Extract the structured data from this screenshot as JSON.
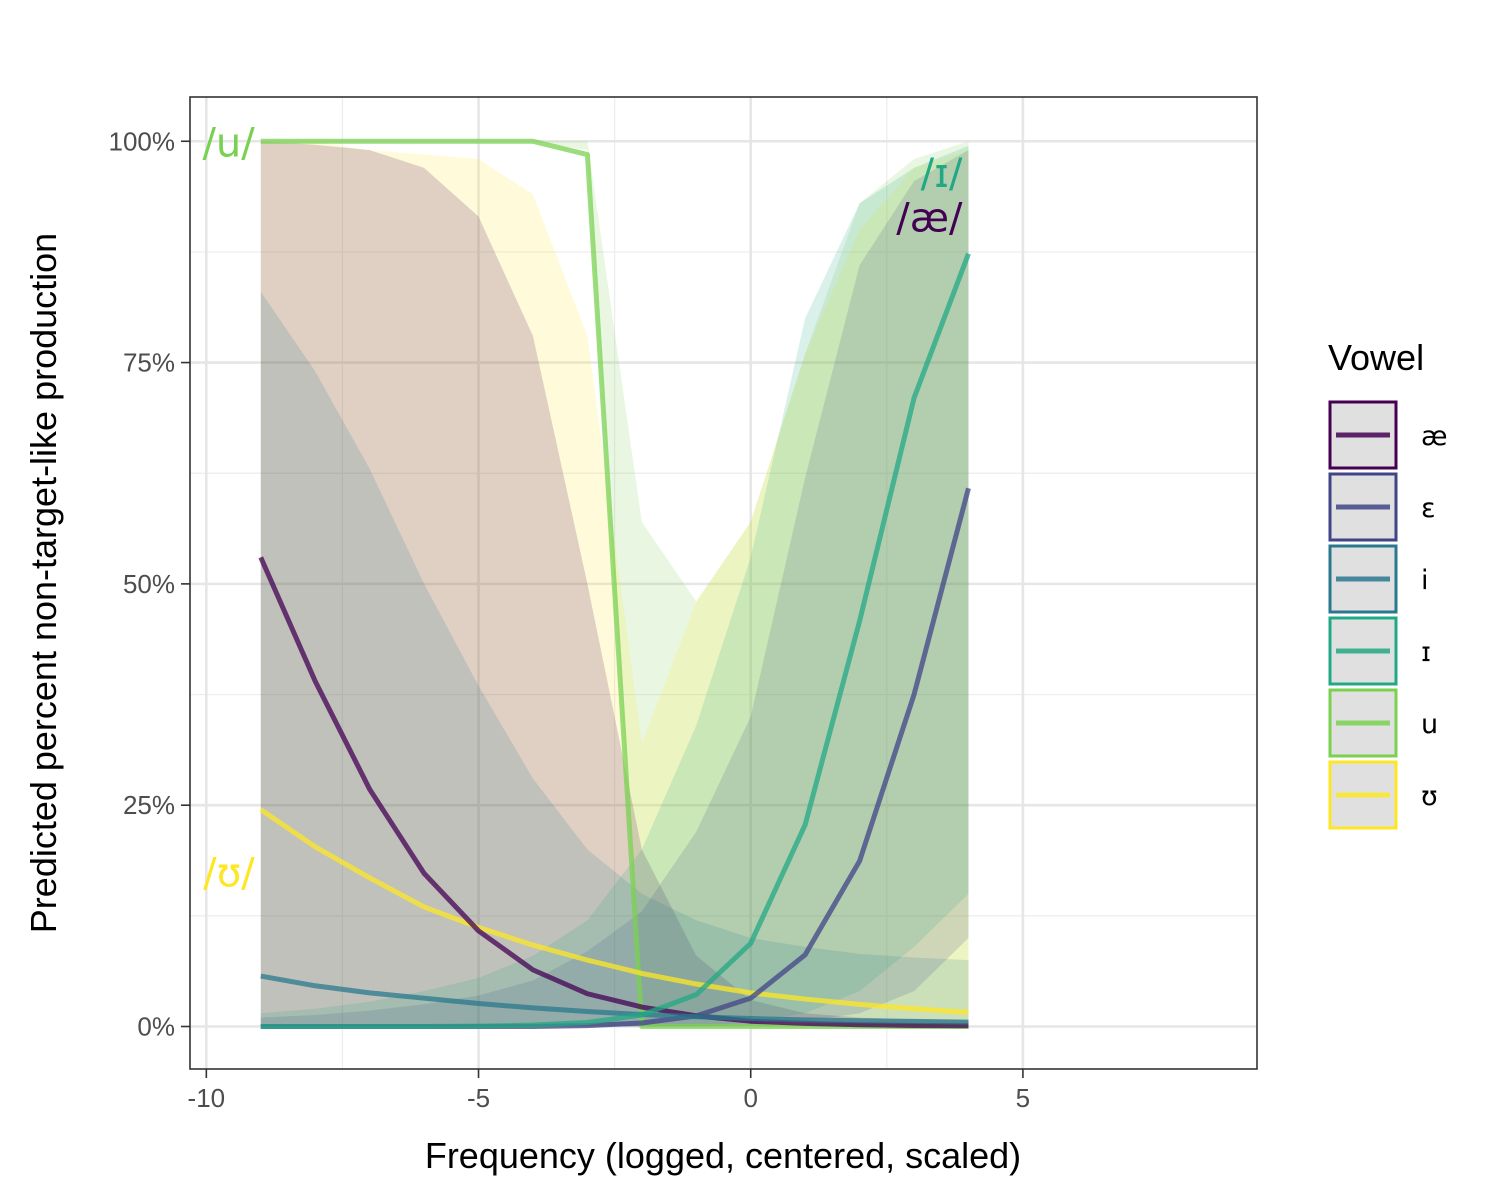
{
  "chart_data": {
    "type": "line",
    "xlabel": "Frequency (logged, centered, scaled)",
    "ylabel": "Predicted percent non-target-like production",
    "xlim": [
      -10.3,
      9.3
    ],
    "ylim": [
      -4.8,
      105
    ],
    "x_ticks": [
      -10,
      -5,
      0,
      5
    ],
    "x_tick_labels": [
      "-10",
      "-5",
      "0",
      "5"
    ],
    "y_ticks": [
      0,
      25,
      50,
      75,
      100
    ],
    "y_tick_labels": [
      "0%",
      "25%",
      "50%",
      "75%",
      "100%"
    ],
    "grid": true,
    "legend": {
      "title": "Vowel",
      "position": "right"
    },
    "x": [
      -9,
      -8,
      -7,
      -6,
      -5,
      -4,
      -3,
      -2,
      -1,
      0,
      1,
      2,
      3,
      4
    ],
    "series": [
      {
        "name": "u",
        "color": "#7ad151",
        "values": [
          100,
          100,
          100,
          100,
          100,
          100,
          98.5,
          0,
          0,
          0,
          0,
          0,
          0,
          0
        ],
        "lower": [
          100,
          100,
          100,
          100,
          100,
          100,
          99,
          0,
          0,
          0,
          0,
          0,
          0,
          0
        ],
        "upper": [
          100,
          100,
          100,
          100,
          100,
          100,
          100,
          57,
          48,
          57,
          76,
          93,
          98,
          100
        ]
      },
      {
        "name": "ʊ",
        "color": "#fde725",
        "values": [
          24.5,
          20.3,
          16.8,
          13.5,
          11.2,
          9.2,
          7.5,
          6.0,
          4.8,
          3.8,
          3.1,
          2.5,
          2.0,
          1.6
        ],
        "lower": [
          0,
          0,
          0,
          0,
          0,
          0,
          0,
          0,
          0,
          0,
          0,
          0,
          0,
          0
        ],
        "upper": [
          100,
          100,
          99,
          98.5,
          98,
          94,
          78,
          32,
          48,
          57,
          76,
          90,
          97,
          99
        ]
      },
      {
        "name": "æ",
        "color": "#440154",
        "values": [
          53,
          39,
          26.8,
          17.3,
          10.8,
          6.4,
          3.7,
          2.2,
          1.2,
          0.6,
          0.35,
          0.2,
          0.12,
          0.08
        ],
        "lower": [
          0,
          0,
          0,
          0,
          0,
          0,
          0,
          0,
          0,
          0,
          0,
          0,
          0,
          0
        ],
        "upper": [
          100,
          99.6,
          99,
          97,
          91.5,
          78,
          50,
          20,
          8,
          3,
          1.5,
          1,
          0.8,
          0.7
        ]
      },
      {
        "name": "ɛ",
        "color": "#414487",
        "values": [
          0,
          0,
          0,
          0,
          0,
          0,
          0.1,
          0.4,
          1.2,
          3.2,
          8.1,
          18.7,
          37.5,
          60.8
        ],
        "lower": [
          0,
          0,
          0,
          0,
          0,
          0,
          0,
          0,
          0,
          0.2,
          0.6,
          1.5,
          4,
          10
        ],
        "upper": [
          1,
          1.3,
          1.8,
          2.5,
          3.5,
          5.2,
          8.5,
          13,
          22,
          35,
          62,
          86,
          95.5,
          99
        ]
      },
      {
        "name": "i",
        "color": "#2a788e",
        "values": [
          5.7,
          4.6,
          3.8,
          3.2,
          2.6,
          2.1,
          1.7,
          1.35,
          1.1,
          0.9,
          0.75,
          0.65,
          0.58,
          0.5
        ],
        "lower": [
          0,
          0,
          0,
          0,
          0,
          0,
          0,
          0,
          0,
          0,
          0,
          0,
          0,
          0
        ],
        "upper": [
          83,
          74,
          63,
          50,
          38.5,
          28,
          20,
          15,
          12,
          10,
          9,
          8.2,
          7.8,
          7.5
        ]
      },
      {
        "name": "ɪ",
        "color": "#22a884",
        "values": [
          0,
          0,
          0,
          0,
          0.05,
          0.15,
          0.45,
          1.3,
          3.6,
          9.4,
          22.8,
          45.8,
          71,
          87.3
        ],
        "lower": [
          0,
          0,
          0,
          0,
          0,
          0,
          0,
          0,
          0,
          0.5,
          1.5,
          4,
          9,
          15
        ],
        "upper": [
          1.5,
          2,
          2.8,
          4,
          5.5,
          8,
          12,
          20,
          34,
          53,
          80,
          93,
          97,
          99.5
        ]
      }
    ],
    "annotations": [
      {
        "text": "/u/",
        "color": "#7ad151",
        "x": -9.0,
        "y": 100,
        "anchor": "end"
      },
      {
        "text": "/ʊ/",
        "color": "#fde725",
        "x": -9.0,
        "y": 17.5,
        "anchor": "end"
      },
      {
        "text": "/ɪ/",
        "color": "#22a884",
        "x": 4.0,
        "y": 96.5,
        "anchor": "end"
      },
      {
        "text": "/æ/",
        "color": "#440154",
        "x": 4.0,
        "y": 91.5,
        "anchor": "end"
      }
    ]
  }
}
